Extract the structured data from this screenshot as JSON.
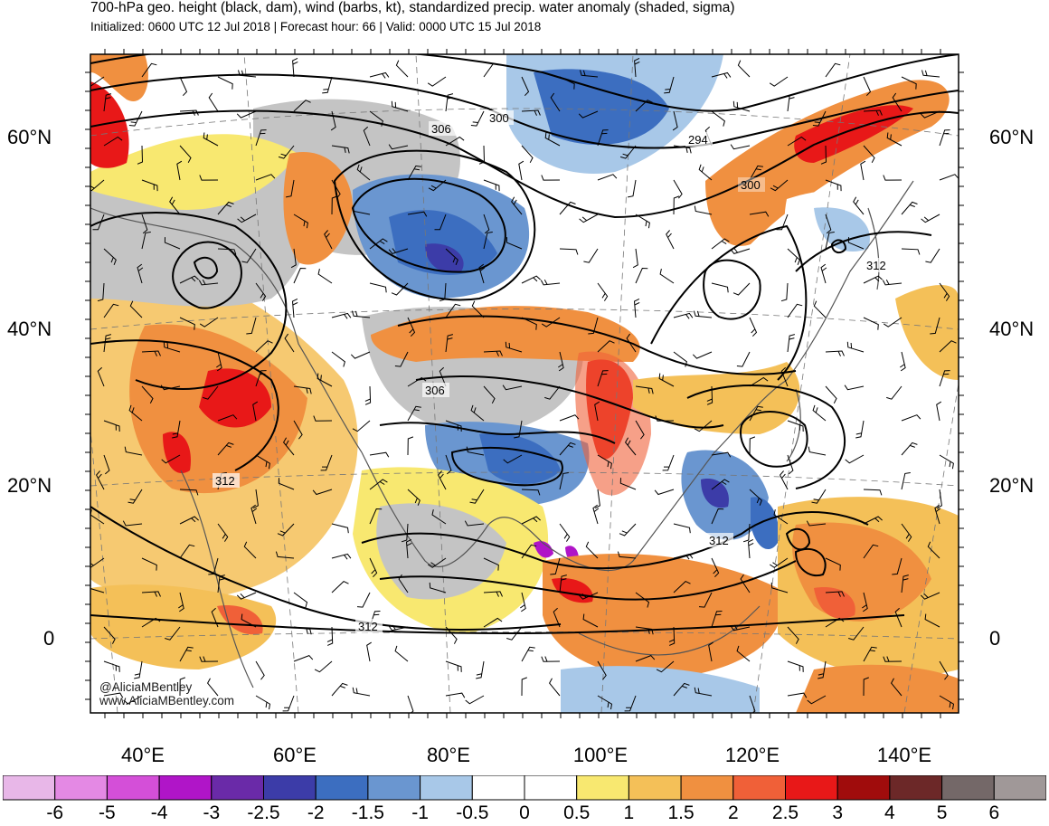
{
  "header": {
    "title": "700-hPa geo. height (black, dam), wind (barbs, kt), standardized precip. water anomaly (shaded, sigma)",
    "subtitle": "Initialized: 0600 UTC 12 Jul 2018 | Forecast hour: 66 | Valid: 0000 UTC 15 Jul 2018"
  },
  "axes": {
    "lat_labels_left": [
      "60°N",
      "40°N",
      "20°N",
      "0"
    ],
    "lat_labels_right": [
      "60°N",
      "40°N",
      "20°N",
      "0"
    ],
    "lon_labels": [
      "40°E",
      "60°E",
      "80°E",
      "100°E",
      "120°E",
      "140°E"
    ]
  },
  "contour_labels": [
    "306",
    "300",
    "294",
    "300",
    "312",
    "306",
    "312",
    "312",
    "312"
  ],
  "credit": {
    "handle": "@AliciaMBentley",
    "url": "www.AliciaMBentley.com"
  },
  "colorbar": {
    "labels": [
      "-6",
      "-5",
      "-4",
      "-3",
      "-2.5",
      "-2",
      "-1.5",
      "-1",
      "-0.5",
      "0",
      "0.5",
      "1",
      "1.5",
      "2",
      "2.5",
      "3",
      "4",
      "5",
      "6"
    ],
    "colors": [
      "#e8b7e8",
      "#e489e4",
      "#d44fd8",
      "#b015c8",
      "#6a2aa8",
      "#3c3ca8",
      "#3c6ec0",
      "#6a96d0",
      "#a8c8e8",
      "#ffffff",
      "#ffffff",
      "#f8e870",
      "#f4c058",
      "#f09040",
      "#f06038",
      "#e81818",
      "#a00c0c",
      "#6c2828",
      "#746868",
      "#a09898"
    ]
  },
  "colors": {
    "land_gray": "#c4c4c4",
    "coast": "#555555",
    "contour": "#000000"
  }
}
